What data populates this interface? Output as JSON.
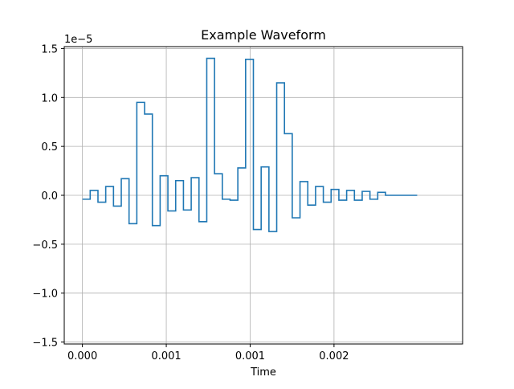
{
  "chart_data": {
    "type": "line",
    "step": "post",
    "title": "Example Waveform",
    "xlabel": "Time",
    "ylabel": "",
    "y_offset_label": "1e−5",
    "y_scale": 1e-05,
    "xlim": [
      -0.00013,
      0.00272
    ],
    "ylim": [
      -1.52,
      1.52
    ],
    "grid": true,
    "line_color": "#1f77b4",
    "x_ticks": [
      {
        "value": 0.0,
        "label": "0.000"
      },
      {
        "value": 0.0006,
        "label": "0.001"
      },
      {
        "value": 0.0012,
        "label": "0.001"
      },
      {
        "value": 0.0018,
        "label": "0.002"
      }
    ],
    "y_ticks": [
      {
        "value": 1.5,
        "label": "1.5"
      },
      {
        "value": 1.0,
        "label": "1.0"
      },
      {
        "value": 0.5,
        "label": "0.5"
      },
      {
        "value": 0.0,
        "label": "0.0"
      },
      {
        "value": -0.5,
        "label": "−0.5"
      },
      {
        "value": -1.0,
        "label": "−1.0"
      },
      {
        "value": -1.5,
        "label": "−1.5"
      }
    ],
    "series": [
      {
        "x_start": 0.0,
        "dx": 5.56e-05,
        "x_end": 0.002395,
        "values": [
          -0.04,
          0.05,
          -0.07,
          0.09,
          -0.11,
          0.17,
          -0.29,
          0.95,
          0.83,
          -0.31,
          0.2,
          -0.16,
          0.15,
          -0.15,
          0.18,
          -0.27,
          1.4,
          0.22,
          -0.04,
          -0.05,
          0.28,
          1.39,
          -0.35,
          0.29,
          -0.37,
          1.15,
          0.63,
          -0.23,
          0.14,
          -0.1,
          0.09,
          -0.07,
          0.06,
          -0.05,
          0.05,
          -0.05,
          0.04,
          -0.04,
          0.03,
          0.0,
          0.0,
          0.0,
          0.0
        ]
      }
    ]
  }
}
